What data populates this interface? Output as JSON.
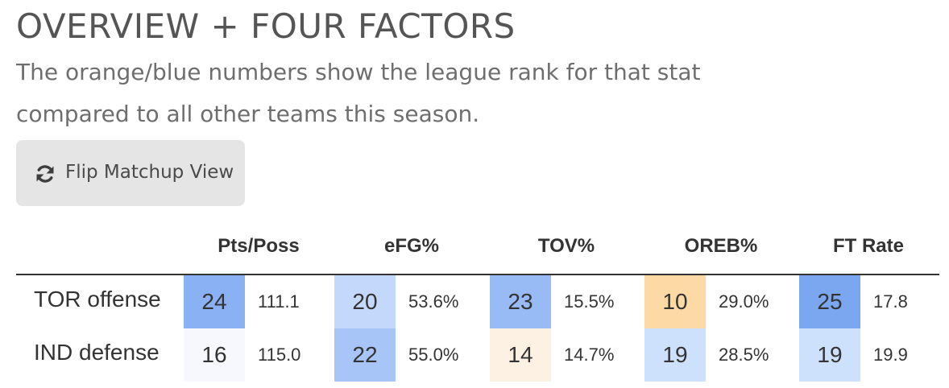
{
  "title": "OVERVIEW + FOUR FACTORS",
  "subtitle": "The orange/blue numbers show the league rank for that stat compared to all other teams this season.",
  "flip_button": {
    "label": "Flip Matchup View",
    "icon": "refresh-icon"
  },
  "columns": [
    "Pts/Poss",
    "eFG%",
    "TOV%",
    "OREB%",
    "FT Rate"
  ],
  "rows": [
    {
      "label": "TOR offense",
      "cells": [
        {
          "rank": "24",
          "value": "111.1",
          "color": "#89b1f3"
        },
        {
          "rank": "20",
          "value": "53.6%",
          "color": "#c3d8fb"
        },
        {
          "rank": "23",
          "value": "15.5%",
          "color": "#98bbf5"
        },
        {
          "rank": "10",
          "value": "29.0%",
          "color": "#fdd9a6"
        },
        {
          "rank": "25",
          "value": "17.8",
          "color": "#7aa7f0"
        }
      ]
    },
    {
      "label": "IND defense",
      "cells": [
        {
          "rank": "16",
          "value": "115.0",
          "color": "#f6f8fe"
        },
        {
          "rank": "22",
          "value": "55.0%",
          "color": "#a7c5f7"
        },
        {
          "rank": "14",
          "value": "14.7%",
          "color": "#fdf1e3"
        },
        {
          "rank": "19",
          "value": "28.5%",
          "color": "#cde0fc"
        },
        {
          "rank": "19",
          "value": "19.9",
          "color": "#cde0fc"
        }
      ]
    }
  ]
}
